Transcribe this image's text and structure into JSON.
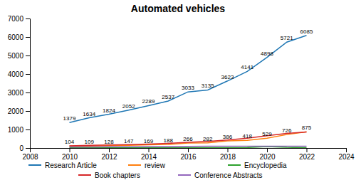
{
  "chart_data": {
    "type": "line",
    "title": "Automated vehicles",
    "x": [
      2010,
      2011,
      2012,
      2013,
      2014,
      2015,
      2016,
      2017,
      2018,
      2019,
      2020,
      2021,
      2022
    ],
    "series": [
      {
        "name": "Research Article",
        "values": [
          1379,
          1634,
          1824,
          2052,
          2289,
          2537,
          3033,
          3135,
          3623,
          4141,
          4898,
          5721,
          6085
        ],
        "data_labels": true
      },
      {
        "name": "review",
        "values": [
          104,
          109,
          128,
          147,
          169,
          188,
          266,
          282,
          386,
          418,
          529,
          726,
          875
        ],
        "data_labels": true
      },
      {
        "name": "Encyclopedia",
        "values": [
          10,
          10,
          12,
          14,
          15,
          16,
          18,
          20,
          22,
          25,
          80,
          35,
          15
        ]
      },
      {
        "name": "Book chapters",
        "values": [
          120,
          140,
          160,
          185,
          210,
          250,
          310,
          360,
          430,
          530,
          660,
          790,
          870
        ]
      },
      {
        "name": "Conference Abstracts",
        "values": [
          55,
          60,
          65,
          70,
          75,
          80,
          88,
          92,
          95,
          95,
          95,
          95,
          95
        ]
      }
    ],
    "xlim": [
      2008,
      2024
    ],
    "xticks": [
      2008,
      2010,
      2012,
      2014,
      2016,
      2018,
      2020,
      2022,
      2024
    ],
    "ylim": [
      0,
      7000
    ],
    "yticks": [
      0,
      1000,
      2000,
      3000,
      4000,
      5000,
      6000,
      7000
    ],
    "grid": false,
    "legend": "bottom"
  }
}
